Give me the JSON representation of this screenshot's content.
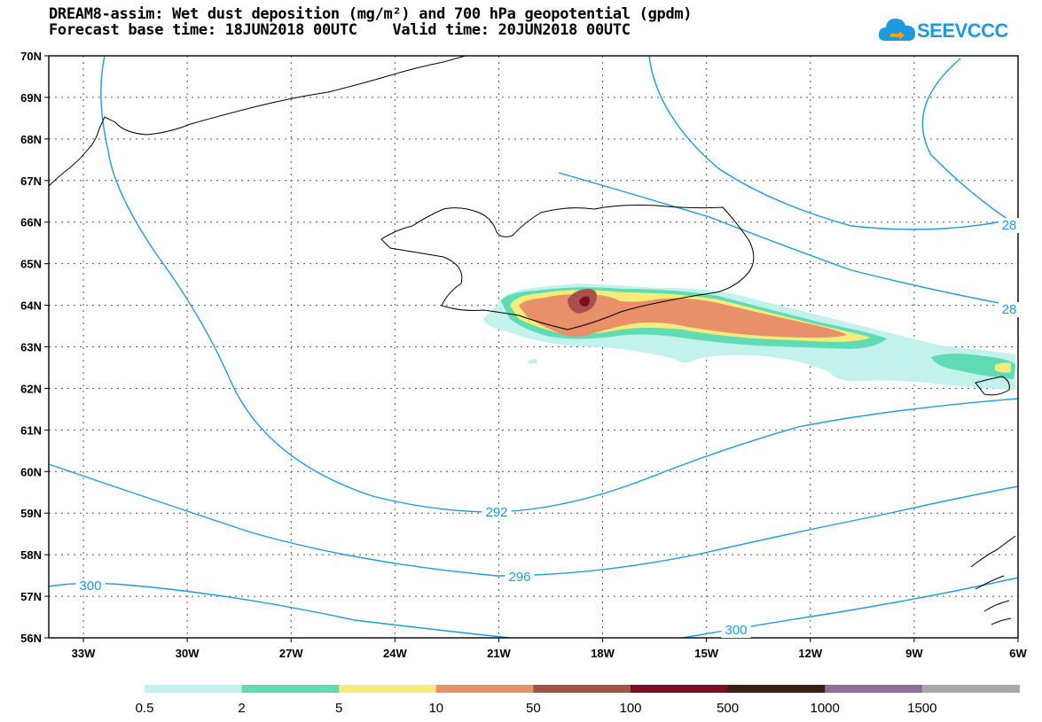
{
  "header": {
    "title_line1": "DREAM8-assim: Wet dust deposition (mg/m²) and 700 hPa geopotential (gpdm)",
    "title_line2": "Forecast base time: 18JUN2018 00UTC    Valid time: 20JUN2018 00UTC"
  },
  "logo": {
    "text": "SEEVCCC",
    "icon": "cloud-icon",
    "color": "#1e9be0"
  },
  "map": {
    "lat_labels": [
      "70N",
      "69N",
      "68N",
      "67N",
      "66N",
      "65N",
      "64N",
      "63N",
      "62N",
      "61N",
      "60N",
      "59N",
      "58N",
      "57N",
      "56N"
    ],
    "lon_labels": [
      "33W",
      "30W",
      "27W",
      "24W",
      "21W",
      "18W",
      "15W",
      "12W",
      "9W",
      "6W"
    ],
    "contour_color": "#1e9be0",
    "contour_labels": [
      "292",
      "296",
      "300",
      "300",
      "28",
      "28"
    ]
  },
  "colorbar": {
    "colors": [
      "#c3f1eb",
      "#5fdcb4",
      "#f6ec7a",
      "#e8906a",
      "#a8504c",
      "#820a28",
      "#3a2014",
      "#8c6e9c",
      "#a8a8a8"
    ],
    "labels": [
      "0.5",
      "2",
      "5",
      "10",
      "50",
      "100",
      "500",
      "1000",
      "1500"
    ]
  }
}
